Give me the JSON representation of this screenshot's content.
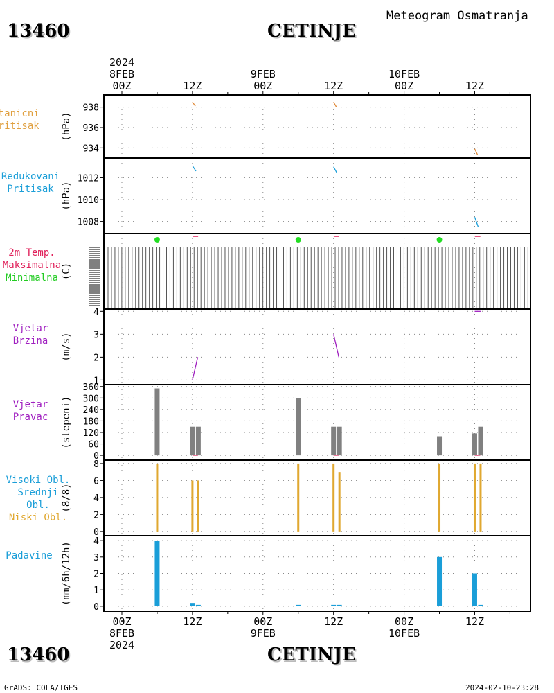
{
  "header": {
    "station_id": "13460",
    "station_name": "CETINJE",
    "subtitle": "Meteogram Osmatranja"
  },
  "footer": {
    "left": "GrADS: COLA/IGES",
    "right": "2024-02-10-23:28"
  },
  "time_axis": {
    "top": [
      {
        "t": 0,
        "lines": [
          "2024",
          "8FEB",
          "00Z"
        ]
      },
      {
        "t": 12,
        "lines": [
          "12Z"
        ]
      },
      {
        "t": 24,
        "lines": [
          "9FEB",
          "00Z"
        ]
      },
      {
        "t": 36,
        "lines": [
          "12Z"
        ]
      },
      {
        "t": 48,
        "lines": [
          "10FEB",
          "00Z"
        ]
      },
      {
        "t": 60,
        "lines": [
          "12Z"
        ]
      }
    ],
    "bottom": [
      {
        "t": 0,
        "lines": [
          "00Z",
          "8FEB",
          "2024"
        ]
      },
      {
        "t": 12,
        "lines": [
          "12Z"
        ]
      },
      {
        "t": 24,
        "lines": [
          "00Z",
          "9FEB"
        ]
      },
      {
        "t": 36,
        "lines": [
          "12Z"
        ]
      },
      {
        "t": 48,
        "lines": [
          "00Z",
          "10FEB"
        ]
      },
      {
        "t": 60,
        "lines": [
          "12Z"
        ]
      }
    ]
  },
  "colors": {
    "pressure": "#e08a3a",
    "reduced": "#1a9ed8",
    "tmax": "#e0205a",
    "tmin": "#22dd22",
    "wind": "#a020c0",
    "winddir": "#808080",
    "clouds": "#e0a830",
    "precip": "#1a9ed8",
    "grid": "#888888"
  },
  "panels": [
    {
      "key": "pressure",
      "labels": [
        "Stanicni",
        "Pritisak"
      ],
      "label_colors": [
        "#e0a040",
        "#e0a040"
      ],
      "ylabel": "(hPa)"
    },
    {
      "key": "reduced",
      "labels": [
        "Redukovani",
        "Pritisak"
      ],
      "label_colors": [
        "#1a9ed8",
        "#1a9ed8"
      ],
      "ylabel": "(hPa)"
    },
    {
      "key": "temp",
      "labels": [
        "2m Temp.",
        "Maksimalna",
        "Minimalna"
      ],
      "label_colors": [
        "#e0205a",
        "#e0205a",
        "#22cc22"
      ],
      "ylabel": "(C)"
    },
    {
      "key": "wind",
      "labels": [
        "Vjetar",
        "Brzina"
      ],
      "label_colors": [
        "#a020c0",
        "#a020c0"
      ],
      "ylabel": "(m/s)"
    },
    {
      "key": "winddir",
      "labels": [
        "Vjetar",
        "Pravac"
      ],
      "label_colors": [
        "#a020c0",
        "#a020c0"
      ],
      "ylabel": "(stepeni)"
    },
    {
      "key": "clouds",
      "labels": [
        "Visoki Obl.",
        "Srednji Obl.",
        "Niski Obl."
      ],
      "label_colors": [
        "#1a9ed8",
        "#1a9ed8",
        "#e0a830"
      ],
      "ylabel": "(8/8)"
    },
    {
      "key": "precip",
      "labels": [
        "Padavine"
      ],
      "label_colors": [
        "#1a9ed8"
      ],
      "ylabel": "(mm/6h/12h)"
    }
  ],
  "chart_data": [
    {
      "type": "line",
      "title": "Stanicni Pritisak",
      "ylabel": "(hPa)",
      "yticks": [
        934,
        936,
        938
      ],
      "ylim": [
        933,
        939.2
      ],
      "series": [
        {
          "values": [
            [
              12.0,
              938.5
            ],
            [
              12.5,
              938.1
            ]
          ]
        },
        {
          "values": [
            [
              36.0,
              938.5
            ],
            [
              36.5,
              938.0
            ]
          ]
        },
        {
          "values": [
            [
              60.0,
              933.9
            ],
            [
              60.5,
              933.3
            ]
          ]
        }
      ]
    },
    {
      "type": "line",
      "title": "Redukovani Pritisak",
      "ylabel": "(hPa)",
      "yticks": [
        1008,
        1010,
        1012
      ],
      "ylim": [
        1006.9,
        1013.8
      ],
      "series": [
        {
          "values": [
            [
              12.0,
              1013.1
            ],
            [
              12.6,
              1012.6
            ]
          ]
        },
        {
          "values": [
            [
              36.0,
              1013.0
            ],
            [
              36.6,
              1012.4
            ]
          ]
        },
        {
          "values": [
            [
              60.0,
              1008.4
            ],
            [
              60.6,
              1007.5
            ]
          ]
        }
      ]
    },
    {
      "type": "scatter",
      "title": "2m Temp.",
      "ylabel": "(C)",
      "series": [
        {
          "name": "Maksimalna",
          "values": [
            [
              12.5,
              null
            ],
            [
              36.5,
              null
            ],
            [
              60.5,
              null
            ]
          ]
        },
        {
          "name": "Minimalna",
          "values": [
            [
              6,
              null
            ],
            [
              30,
              null
            ],
            [
              54,
              null
            ]
          ]
        }
      ]
    },
    {
      "type": "line",
      "title": "Vjetar Brzina",
      "ylabel": "(m/s)",
      "yticks": [
        1,
        2,
        3,
        4
      ],
      "ylim": [
        0.8,
        4.1
      ],
      "series": [
        {
          "values": [
            [
              12.0,
              1.0
            ],
            [
              12.9,
              2.0
            ]
          ]
        },
        {
          "values": [
            [
              36.0,
              3.0
            ],
            [
              36.9,
              2.0
            ]
          ]
        },
        {
          "values": [
            [
              60.0,
              4.0
            ],
            [
              61.0,
              4.0
            ]
          ]
        }
      ]
    },
    {
      "type": "bar",
      "title": "Vjetar Pravac",
      "ylabel": "(stepeni)",
      "yticks": [
        0,
        60,
        120,
        180,
        240,
        300,
        360
      ],
      "ylim": [
        -25,
        370
      ],
      "values": [
        [
          6,
          350
        ],
        [
          12,
          150
        ],
        [
          13,
          150
        ],
        [
          30,
          300
        ],
        [
          36,
          150
        ],
        [
          37,
          150
        ],
        [
          54,
          100
        ],
        [
          60,
          115
        ],
        [
          61,
          150
        ]
      ]
    },
    {
      "type": "bar",
      "title": "Visoki Obl. / Srednji Obl. / Niski Obl.",
      "ylabel": "(8/8)",
      "yticks": [
        0,
        2,
        4,
        6,
        8
      ],
      "ylim": [
        -0.5,
        8.4
      ],
      "values": [
        [
          6,
          8
        ],
        [
          12,
          6
        ],
        [
          13,
          6
        ],
        [
          30,
          8
        ],
        [
          36,
          8
        ],
        [
          37,
          7
        ],
        [
          54,
          8
        ],
        [
          60,
          8
        ],
        [
          61,
          8
        ]
      ]
    },
    {
      "type": "bar",
      "title": "Padavine",
      "ylabel": "(mm/6h/12h)",
      "yticks": [
        0,
        1,
        2,
        3,
        4
      ],
      "ylim": [
        -0.3,
        4.3
      ],
      "values": [
        [
          6,
          4.0
        ],
        [
          12,
          0.2
        ],
        [
          13,
          0.05
        ],
        [
          30,
          0.05
        ],
        [
          36,
          0.05
        ],
        [
          37,
          0.05
        ],
        [
          54,
          3.0
        ],
        [
          60,
          2.0
        ],
        [
          61,
          0.05
        ]
      ]
    }
  ]
}
